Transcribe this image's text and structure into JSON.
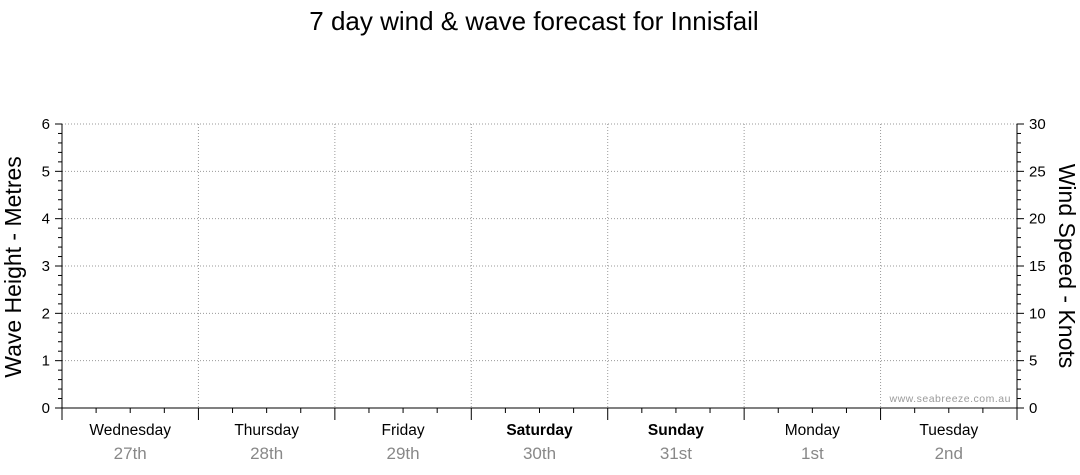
{
  "chart_data": {
    "type": "line",
    "title": "7 day wind & wave forecast for Innisfail",
    "ylabel_left": "Wave Height - Metres",
    "ylabel_right": "Wind Speed - Knots",
    "ylim_left": [
      0,
      6
    ],
    "ylim_right": [
      0,
      30
    ],
    "yticks_left": [
      "0",
      "1",
      "2",
      "3",
      "4",
      "5",
      "6"
    ],
    "yticks_right": [
      "0",
      "5",
      "10",
      "15",
      "20",
      "25",
      "30"
    ],
    "grid": true,
    "days": [
      {
        "name": "Wednesday",
        "date": "27th",
        "bold": false
      },
      {
        "name": "Thursday",
        "date": "28th",
        "bold": false
      },
      {
        "name": "Friday",
        "date": "29th",
        "bold": false
      },
      {
        "name": "Saturday",
        "date": "30th",
        "bold": true
      },
      {
        "name": "Sunday",
        "date": "31st",
        "bold": true
      },
      {
        "name": "Monday",
        "date": "1st",
        "bold": false
      },
      {
        "name": "Tuesday",
        "date": "2nd",
        "bold": false
      }
    ],
    "series": [],
    "watermark": "www.seabreeze.com.au"
  }
}
